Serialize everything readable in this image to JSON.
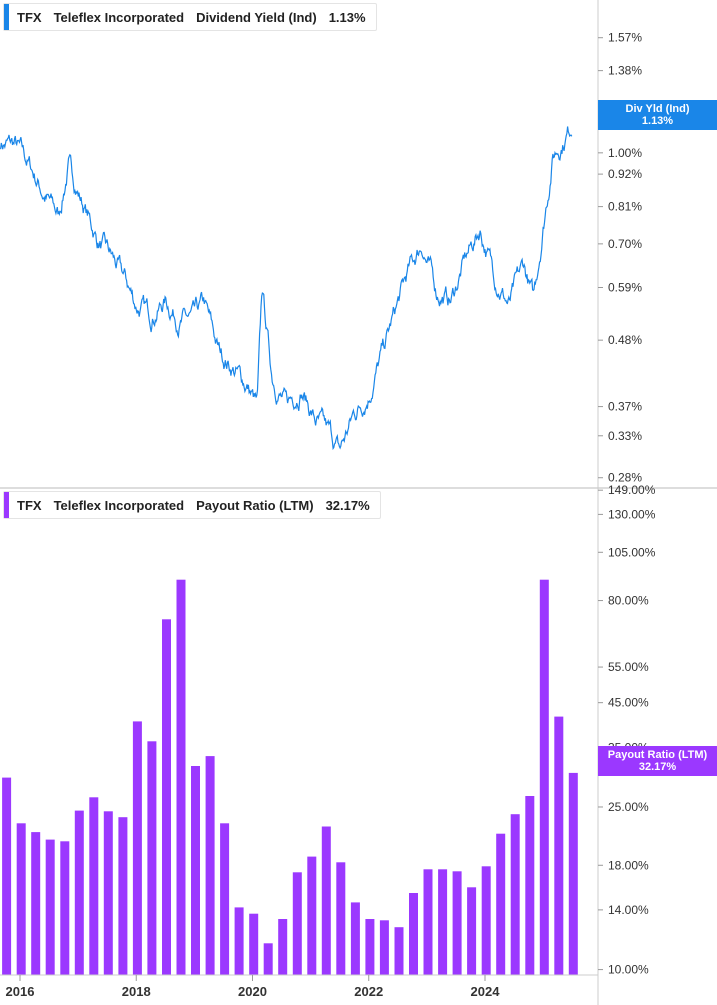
{
  "chart_data": [
    {
      "type": "line",
      "ticker": "TFX",
      "company": "Teleflex Incorporated",
      "metric": "Dividend Yield (Ind)",
      "current_value": "1.13%",
      "tag_label": "Div Yld (Ind)",
      "color": "#1a86e8",
      "y_scale": "log",
      "ylim": [
        0.27,
        1.82
      ],
      "y_ticks": [
        0.28,
        0.33,
        0.37,
        0.48,
        0.59,
        0.7,
        0.81,
        0.92,
        1.0,
        1.13,
        1.38,
        1.57
      ],
      "y_tick_labels": [
        "0.28%",
        "0.33%",
        "0.37%",
        "0.48%",
        "0.59%",
        "0.70%",
        "0.81%",
        "0.92%",
        "1.00%",
        "1.13%",
        "1.38%",
        "1.57%"
      ],
      "x_range": [
        "2015-09",
        "2025-08"
      ],
      "x_dates": [
        "2015-09",
        "2015-12",
        "2016-03",
        "2016-06",
        "2016-09",
        "2016-11",
        "2017-02",
        "2017-05",
        "2017-08",
        "2017-11",
        "2018-01",
        "2018-04",
        "2018-07",
        "2018-10",
        "2019-01",
        "2019-03",
        "2019-06",
        "2019-09",
        "2019-12",
        "2020-02",
        "2020-03",
        "2020-05",
        "2020-08",
        "2020-11",
        "2021-02",
        "2021-05",
        "2021-07",
        "2021-10",
        "2022-01",
        "2022-04",
        "2022-06",
        "2022-09",
        "2022-12",
        "2023-03",
        "2023-06",
        "2023-09",
        "2023-12",
        "2024-03",
        "2024-06",
        "2024-09",
        "2024-11",
        "2025-01",
        "2025-03",
        "2025-05",
        "2025-07"
      ],
      "values": [
        1.04,
        1.03,
        0.95,
        0.85,
        0.78,
        0.95,
        0.82,
        0.71,
        0.66,
        0.6,
        0.55,
        0.53,
        0.56,
        0.52,
        0.52,
        0.55,
        0.46,
        0.43,
        0.4,
        0.37,
        0.58,
        0.42,
        0.37,
        0.4,
        0.35,
        0.33,
        0.31,
        0.36,
        0.39,
        0.46,
        0.52,
        0.62,
        0.7,
        0.58,
        0.56,
        0.66,
        0.74,
        0.62,
        0.55,
        0.64,
        0.56,
        0.75,
        0.99,
        1.05,
        1.12
      ]
    },
    {
      "type": "bar",
      "ticker": "TFX",
      "company": "Teleflex Incorporated",
      "metric": "Payout Ratio (LTM)",
      "current_value": "32.17%",
      "tag_label": "Payout Ratio (LTM)",
      "color": "#9b38ff",
      "y_scale": "log",
      "ylim": [
        9.7,
        150
      ],
      "y_ticks": [
        10,
        14,
        18,
        25,
        35,
        45,
        55,
        80,
        105,
        130,
        149
      ],
      "y_tick_labels": [
        "10.00%",
        "14.00%",
        "18.00%",
        "25.00%",
        "35.00%",
        "45.00%",
        "55.00%",
        "80.00%",
        "105.00%",
        "130.00%",
        "149.00%"
      ],
      "values": [
        29.5,
        22.8,
        21.7,
        20.8,
        20.6,
        24.5,
        26.4,
        24.4,
        23.6,
        40.5,
        36.2,
        72.0,
        90.0,
        31.5,
        33.3,
        22.8,
        14.2,
        13.7,
        11.6,
        13.3,
        17.3,
        18.9,
        22.4,
        18.3,
        14.6,
        13.3,
        13.2,
        12.7,
        15.4,
        17.6,
        17.6,
        17.4,
        15.9,
        17.9,
        21.5,
        24.0,
        26.6,
        90.0,
        41.6,
        30.3
      ],
      "x_dates": [
        "2015-09",
        "2015-12",
        "2016-03",
        "2016-06",
        "2016-09",
        "2016-12",
        "2017-03",
        "2017-06",
        "2017-09",
        "2017-12",
        "2018-03",
        "2018-06",
        "2018-09",
        "2018-12",
        "2019-03",
        "2019-06",
        "2019-09",
        "2019-12",
        "2020-03",
        "2020-06",
        "2020-09",
        "2020-12",
        "2021-03",
        "2021-06",
        "2021-09",
        "2021-12",
        "2022-03",
        "2022-06",
        "2022-09",
        "2022-12",
        "2023-03",
        "2023-06",
        "2023-09",
        "2023-12",
        "2024-03",
        "2024-06",
        "2024-09",
        "2024-12",
        "2025-03",
        "2025-06"
      ]
    }
  ],
  "x_axis": {
    "tick_labels": [
      "2016",
      "2018",
      "2020",
      "2022",
      "2024"
    ],
    "tick_dates": [
      "2016-01",
      "2018-01",
      "2020-01",
      "2022-01",
      "2024-01"
    ]
  },
  "colors": {
    "axis": "#cccccc",
    "grid_divider": "#bbbbbb"
  }
}
